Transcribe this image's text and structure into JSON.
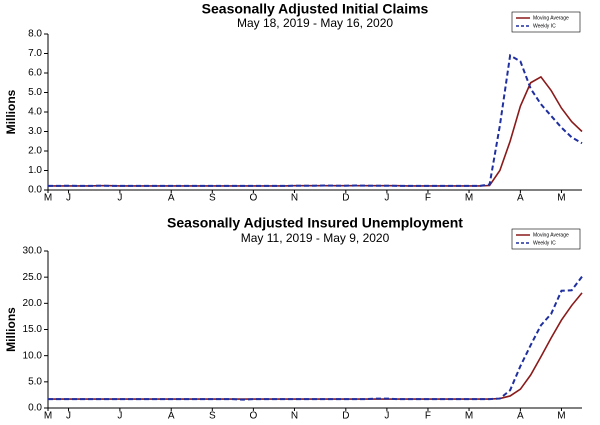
{
  "chart_data": [
    {
      "type": "line",
      "title": "Seasonally Adjusted Initial Claims",
      "subtitle": "May 18, 2019 - May 16, 2020",
      "y_label": "Millions",
      "categories": [
        "M",
        null,
        "J",
        null,
        null,
        null,
        null,
        "J",
        null,
        null,
        null,
        null,
        "A",
        null,
        null,
        null,
        "S",
        null,
        null,
        null,
        "O",
        null,
        null,
        null,
        "N",
        null,
        null,
        null,
        null,
        "D",
        null,
        null,
        null,
        "J",
        null,
        null,
        null,
        "F",
        null,
        null,
        null,
        "M",
        null,
        null,
        null,
        null,
        "A",
        null,
        null,
        null,
        "M",
        null,
        null
      ],
      "ylim": [
        0,
        8
      ],
      "yticks": [
        {
          "value": 0,
          "label": "0.0"
        },
        {
          "value": 1,
          "label": "1.0"
        },
        {
          "value": 2,
          "label": "2.0"
        },
        {
          "value": 3,
          "label": "3.0"
        },
        {
          "value": 4,
          "label": "4.0"
        },
        {
          "value": 5,
          "label": "5.0"
        },
        {
          "value": 6,
          "label": "6.0"
        },
        {
          "value": 7,
          "label": "7.0"
        },
        {
          "value": 8,
          "label": "8.0"
        }
      ],
      "series": [
        {
          "name": "Moving Average",
          "color": "#8b1a1a",
          "dash": false,
          "values": [
            0.21,
            0.21,
            0.21,
            0.21,
            0.21,
            0.22,
            0.22,
            0.21,
            0.21,
            0.21,
            0.21,
            0.21,
            0.21,
            0.21,
            0.21,
            0.21,
            0.21,
            0.21,
            0.21,
            0.21,
            0.21,
            0.21,
            0.21,
            0.21,
            0.22,
            0.22,
            0.22,
            0.22,
            0.22,
            0.22,
            0.22,
            0.22,
            0.22,
            0.22,
            0.22,
            0.21,
            0.21,
            0.21,
            0.21,
            0.21,
            0.21,
            0.21,
            0.21,
            0.23,
            1.0,
            2.5,
            4.3,
            5.5,
            5.8,
            5.1,
            4.2,
            3.5,
            3.0
          ]
        },
        {
          "name": "Weekly IC",
          "color": "#1f2fa0",
          "dash": true,
          "values": [
            0.21,
            0.21,
            0.22,
            0.21,
            0.21,
            0.22,
            0.21,
            0.21,
            0.21,
            0.21,
            0.21,
            0.21,
            0.21,
            0.21,
            0.21,
            0.21,
            0.21,
            0.21,
            0.21,
            0.21,
            0.21,
            0.21,
            0.21,
            0.21,
            0.22,
            0.22,
            0.22,
            0.23,
            0.22,
            0.22,
            0.23,
            0.22,
            0.22,
            0.22,
            0.21,
            0.21,
            0.21,
            0.21,
            0.21,
            0.21,
            0.21,
            0.21,
            0.21,
            0.28,
            3.3,
            6.9,
            6.6,
            5.2,
            4.4,
            3.8,
            3.2,
            2.7,
            2.4
          ]
        }
      ]
    },
    {
      "type": "line",
      "title": "Seasonally Adjusted Insured Unemployment",
      "subtitle": "May 11, 2019 - May 9, 2020",
      "y_label": "Millions",
      "categories": [
        "M",
        null,
        "J",
        null,
        null,
        null,
        null,
        "J",
        null,
        null,
        null,
        null,
        "A",
        null,
        null,
        null,
        "S",
        null,
        null,
        null,
        "O",
        null,
        null,
        null,
        "N",
        null,
        null,
        null,
        null,
        "D",
        null,
        null,
        null,
        "J",
        null,
        null,
        null,
        "F",
        null,
        null,
        null,
        "M",
        null,
        null,
        null,
        null,
        "A",
        null,
        null,
        null,
        "M",
        null,
        null
      ],
      "ylim": [
        0,
        30
      ],
      "yticks": [
        {
          "value": 0,
          "label": "0.0"
        },
        {
          "value": 5,
          "label": "5.0"
        },
        {
          "value": 10,
          "label": "10.0"
        },
        {
          "value": 15,
          "label": "15.0"
        },
        {
          "value": 20,
          "label": "20.0"
        },
        {
          "value": 25,
          "label": "25.0"
        },
        {
          "value": 30,
          "label": "30.0"
        }
      ],
      "series": [
        {
          "name": "Moving Average",
          "color": "#8b1a1a",
          "dash": false,
          "values": [
            1.7,
            1.7,
            1.7,
            1.7,
            1.7,
            1.7,
            1.7,
            1.7,
            1.7,
            1.7,
            1.7,
            1.7,
            1.7,
            1.7,
            1.7,
            1.7,
            1.7,
            1.7,
            1.7,
            1.7,
            1.7,
            1.7,
            1.7,
            1.7,
            1.7,
            1.7,
            1.7,
            1.7,
            1.7,
            1.7,
            1.7,
            1.7,
            1.7,
            1.7,
            1.7,
            1.7,
            1.7,
            1.7,
            1.7,
            1.7,
            1.7,
            1.7,
            1.7,
            1.7,
            1.8,
            2.3,
            3.6,
            6.3,
            9.8,
            13.4,
            16.8,
            19.6,
            22.0
          ]
        },
        {
          "name": "Weekly IC",
          "color": "#1f2fa0",
          "dash": true,
          "values": [
            1.7,
            1.7,
            1.7,
            1.7,
            1.7,
            1.7,
            1.7,
            1.7,
            1.7,
            1.7,
            1.7,
            1.7,
            1.7,
            1.7,
            1.7,
            1.7,
            1.7,
            1.7,
            1.7,
            1.6,
            1.7,
            1.7,
            1.7,
            1.7,
            1.7,
            1.7,
            1.7,
            1.7,
            1.7,
            1.7,
            1.7,
            1.7,
            1.8,
            1.8,
            1.7,
            1.7,
            1.7,
            1.7,
            1.7,
            1.7,
            1.7,
            1.7,
            1.7,
            1.7,
            1.8,
            3.4,
            8.0,
            12.0,
            15.8,
            18.0,
            22.4,
            22.5,
            25.1
          ]
        }
      ]
    }
  ]
}
